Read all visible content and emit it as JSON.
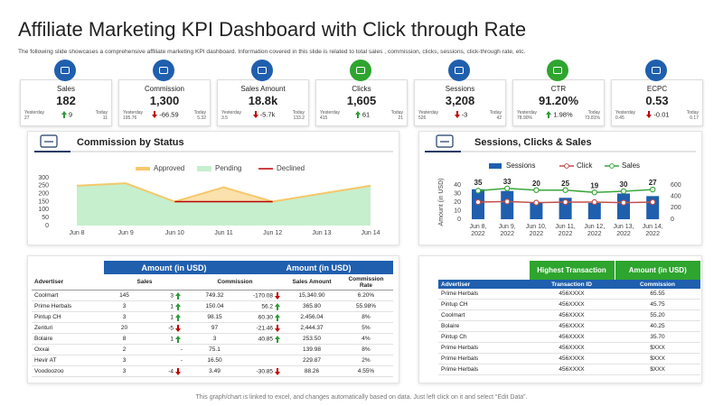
{
  "header": {
    "title": "Affiliate Marketing KPI Dashboard with Click through Rate",
    "subtitle": "The following slide showcases a comprehensive affiliate marketing KPI dashboard. Information covered in this slide is related to total sales , commission, clicks, sessions, click-through rate, etc."
  },
  "kpis": [
    {
      "label": "Sales",
      "value": "182",
      "yesterday_label": "Yesterday",
      "yesterday": "27",
      "change": "9",
      "today_label": "Today",
      "today": "11",
      "color": "#1f5fae"
    },
    {
      "label": "Commission",
      "value": "1,300",
      "yesterday_label": "Yesterday",
      "yesterday": "195.76",
      "change": "-66.59",
      "today_label": "Today",
      "today": "5.32",
      "color": "#1f5fae"
    },
    {
      "label": "Sales Amount",
      "value": "18.8k",
      "yesterday_label": "Yesterday",
      "yesterday": "3.5",
      "change": "-5.7k",
      "today_label": "Today",
      "today": "133.2",
      "color": "#1f5fae"
    },
    {
      "label": "Clicks",
      "value": "1,605",
      "yesterday_label": "Yesterday",
      "yesterday": "415",
      "change": "61",
      "today_label": "Today",
      "today": "21",
      "color": "#2ea52e"
    },
    {
      "label": "Sessions",
      "value": "3,208",
      "yesterday_label": "Yesterday",
      "yesterday": "526",
      "change": "-3",
      "today_label": "Today",
      "today": "42",
      "color": "#1f5fae"
    },
    {
      "label": "CTR",
      "value": "91.20%",
      "yesterday_label": "Yesterday",
      "yesterday": "78.90%",
      "change": "1.98%",
      "today_label": "Today",
      "today": "73.81%",
      "color": "#2ea52e"
    },
    {
      "label": "ECPC",
      "value": "0.53",
      "yesterday_label": "Yesterday",
      "yesterday": "0.45",
      "change": "-0.01",
      "today_label": "Today",
      "today": "0.17",
      "color": "#1f5fae"
    }
  ],
  "chart_data": [
    {
      "type": "line",
      "title": "Commission by Status",
      "categories": [
        "Jun 8",
        "Jun 9",
        "Jun 10",
        "Jun 11",
        "Jun 12",
        "Jun 13",
        "Jun 14"
      ],
      "series": [
        {
          "name": "Approved",
          "kind": "area",
          "color": "#f5c86a",
          "values": [
            250,
            265,
            150,
            240,
            150,
            200,
            250
          ]
        },
        {
          "name": "Pending",
          "kind": "area",
          "color": "#c6efce",
          "values": [
            250,
            265,
            150,
            150,
            150,
            200,
            250
          ]
        },
        {
          "name": "Declined",
          "kind": "line",
          "color": "#c00000",
          "values": [
            null,
            null,
            150,
            150,
            150,
            null,
            null
          ]
        }
      ],
      "ylim": [
        0,
        300
      ],
      "yticks": [
        0,
        50,
        100,
        150,
        200,
        250,
        300
      ],
      "legend": "top"
    },
    {
      "type": "combo",
      "title": "Sessions, Clicks & Sales",
      "categories": [
        "Jun 8, 2022",
        "Jun 9, 2022",
        "Jun 10, 2022",
        "Jun 11, 2022",
        "Jun 12, 2022",
        "Jun 13, 2022",
        "Jun 14, 2022"
      ],
      "y_label": "Amount (in USD)",
      "series": [
        {
          "name": "Sessions",
          "kind": "bar",
          "color": "#1f5fae",
          "values": [
            35,
            33,
            20,
            25,
            19,
            30,
            27
          ]
        },
        {
          "name": "Click",
          "kind": "line",
          "axis": "y2",
          "color": "#c0504d",
          "values": [
            300,
            310,
            290,
            300,
            300,
            290,
            300
          ]
        },
        {
          "name": "Sales",
          "kind": "line",
          "axis": "y2",
          "color": "#3aa63a",
          "values": [
            500,
            540,
            510,
            510,
            470,
            490,
            520
          ]
        }
      ],
      "ylim": [
        0,
        40
      ],
      "yticks": [
        0,
        10,
        20,
        30,
        40
      ],
      "y2lim": [
        0,
        600
      ],
      "y2ticks": [
        0,
        200,
        400,
        600
      ],
      "data_labels": true,
      "legend": "top"
    }
  ],
  "commission_table": {
    "group_headers": [
      "Amount (in USD)",
      "Amount (in USD)"
    ],
    "columns": [
      "Advertiser",
      "Sales",
      "Commission",
      "Sales Amount",
      "Commission Rate"
    ],
    "rows": [
      [
        "Coolmart",
        "145",
        "3",
        "749.32",
        "-170.08",
        "15,340.90",
        "6.20%"
      ],
      [
        "Prime Herbals",
        "3",
        "1",
        "150.04",
        "56.2",
        "365.80",
        "55.98%"
      ],
      [
        "Pintup CH",
        "3",
        "1",
        "98.15",
        "60.30",
        "2,456.04",
        "8%"
      ],
      [
        "Zenturi",
        "20",
        "-5",
        "97",
        "-21.46",
        "2,444.37",
        "5%"
      ],
      [
        "Bolaire",
        "8",
        "1",
        "3",
        "40.85",
        "253.50",
        "4%"
      ],
      [
        "Oxxai",
        "2",
        "-",
        "75.1",
        null,
        "139.98",
        "8%"
      ],
      [
        "Hevir AT",
        "3",
        "-",
        "16.50",
        null,
        "229.87",
        "2%"
      ],
      [
        "Voodoozoo",
        "3",
        "-4",
        "3.49",
        "-30.85",
        "88.26",
        "4.55%"
      ]
    ]
  },
  "transaction_table": {
    "group_headers": [
      "Highest Transaction",
      "Amount (in USD)"
    ],
    "columns": [
      "Advertiser",
      "Transaction ID",
      "Commission"
    ],
    "rows": [
      [
        "Prime Herbals",
        "456XXXX",
        "65.55"
      ],
      [
        "Pintup CH",
        "456XXXX",
        "45.75"
      ],
      [
        "Coolmart",
        "456XXXX",
        "55.20"
      ],
      [
        "Bolaire",
        "456XXXX",
        "40.25"
      ],
      [
        "Pintup Ch",
        "456XXXX",
        "35.70"
      ],
      [
        "Prime Herbals",
        "456XXXX",
        "$XXX"
      ],
      [
        "Prime Herbals",
        "456XXXX",
        "$XXX"
      ],
      [
        "Prime Herbals",
        "456XXXX",
        "$XXX"
      ]
    ]
  },
  "footer": "This graph/chart is linked to excel, and changes automatically based on data. Just left click on it and select “Edit Data”."
}
